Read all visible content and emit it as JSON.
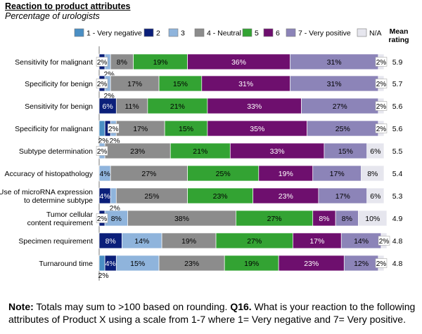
{
  "chart_data": {
    "type": "bar",
    "stacked": true,
    "orientation": "horizontal",
    "title": "Reaction to product attributes",
    "subtitle": "Percentage of urologists",
    "mean_header": "Mean\nrating",
    "legend_placement": "top",
    "xlim": [
      0,
      100
    ],
    "series": [
      {
        "name": "1 - Very negative",
        "color": "#4a8fc4"
      },
      {
        "name": "2",
        "color": "#0b1f7a"
      },
      {
        "name": "3",
        "color": "#8fb4dc"
      },
      {
        "name": "4 - Neutral",
        "color": "#8c8c8c"
      },
      {
        "name": "5",
        "color": "#33a333"
      },
      {
        "name": "6",
        "color": "#6e0f6e"
      },
      {
        "name": "7 - Very positive",
        "color": "#8c84b8"
      },
      {
        "name": "N/A",
        "color": "#e6e6ee"
      }
    ],
    "categories": [
      {
        "label": "Sensitivity for malignant",
        "values": [
          0,
          2,
          2,
          8,
          19,
          36,
          31,
          2
        ],
        "mean": "5.9"
      },
      {
        "label": "Specificity for benign",
        "values": [
          0,
          2,
          2,
          17,
          15,
          31,
          31,
          2
        ],
        "mean": "5.7"
      },
      {
        "label": "Sensitivity for benign",
        "values": [
          0,
          6,
          0,
          11,
          21,
          33,
          27,
          2
        ],
        "mean": "5.6"
      },
      {
        "label": "Specificity for malignant",
        "values": [
          2,
          2,
          2,
          17,
          15,
          35,
          25,
          2
        ],
        "mean": "5.6"
      },
      {
        "label": "Subtype determination",
        "values": [
          0,
          0,
          2,
          23,
          21,
          33,
          15,
          6
        ],
        "mean": "5.5"
      },
      {
        "label": "Accuracy of histopathology",
        "values": [
          0,
          0,
          4,
          27,
          25,
          19,
          17,
          8
        ],
        "mean": "5.4"
      },
      {
        "label": "Use of microRNA expression\nto determine subtype",
        "values": [
          0,
          4,
          2,
          25,
          23,
          23,
          17,
          6
        ],
        "mean": "5.3"
      },
      {
        "label": "Tumor cellular\ncontent requirement",
        "values": [
          0,
          2,
          8,
          38,
          27,
          8,
          8,
          10
        ],
        "mean": "4.9"
      },
      {
        "label": "Specimen requirement",
        "values": [
          0,
          8,
          14,
          19,
          27,
          17,
          14,
          2
        ],
        "mean": "4.8"
      },
      {
        "label": "Turnaround time",
        "values": [
          2,
          4,
          15,
          23,
          19,
          23,
          12,
          2
        ],
        "mean": "4.8"
      }
    ],
    "data_labels": [
      [
        [
          "2%",
          1,
          "in"
        ],
        [
          "2%",
          2,
          "below"
        ],
        [
          "8%",
          3,
          "in"
        ],
        [
          "19%",
          4,
          "in"
        ],
        [
          "36%",
          5,
          "in"
        ],
        [
          "31%",
          6,
          "in"
        ],
        [
          "2%",
          7,
          "in"
        ]
      ],
      [
        [
          "2%",
          1,
          "in"
        ],
        [
          "2%",
          2,
          "below"
        ],
        [
          "17%",
          3,
          "in"
        ],
        [
          "15%",
          4,
          "in"
        ],
        [
          "31%",
          5,
          "in"
        ],
        [
          "31%",
          6,
          "in"
        ],
        [
          "2%",
          7,
          "in"
        ]
      ],
      [
        [
          "6%",
          1,
          "in"
        ],
        [
          "11%",
          3,
          "in"
        ],
        [
          "21%",
          4,
          "in"
        ],
        [
          "33%",
          5,
          "in"
        ],
        [
          "27%",
          6,
          "in"
        ],
        [
          "2%",
          7,
          "in"
        ]
      ],
      [
        [
          "2%",
          0,
          "below"
        ],
        [
          "2%",
          1,
          "below"
        ],
        [
          "2%",
          2,
          "in"
        ],
        [
          "17%",
          3,
          "in"
        ],
        [
          "15%",
          4,
          "in"
        ],
        [
          "35%",
          5,
          "in"
        ],
        [
          "25%",
          6,
          "in"
        ],
        [
          "2%",
          7,
          "in"
        ]
      ],
      [
        [
          "2%",
          2,
          "in"
        ],
        [
          "23%",
          3,
          "in"
        ],
        [
          "21%",
          4,
          "in"
        ],
        [
          "33%",
          5,
          "in"
        ],
        [
          "15%",
          6,
          "in"
        ],
        [
          "6%",
          7,
          "in"
        ]
      ],
      [
        [
          "4%",
          2,
          "in"
        ],
        [
          "27%",
          3,
          "in"
        ],
        [
          "25%",
          4,
          "in"
        ],
        [
          "19%",
          5,
          "in"
        ],
        [
          "17%",
          6,
          "in"
        ],
        [
          "8%",
          7,
          "in"
        ]
      ],
      [
        [
          "4%",
          1,
          "in"
        ],
        [
          "2%",
          2,
          "below"
        ],
        [
          "25%",
          3,
          "in"
        ],
        [
          "23%",
          4,
          "in"
        ],
        [
          "23%",
          5,
          "in"
        ],
        [
          "17%",
          6,
          "in"
        ],
        [
          "6%",
          7,
          "in"
        ]
      ],
      [
        [
          "2%",
          1,
          "in"
        ],
        [
          "8%",
          2,
          "in"
        ],
        [
          "38%",
          3,
          "in"
        ],
        [
          "27%",
          4,
          "in"
        ],
        [
          "8%",
          5,
          "in"
        ],
        [
          "8%",
          6,
          "in"
        ],
        [
          "10%",
          7,
          "in"
        ]
      ],
      [
        [
          "8%",
          1,
          "in"
        ],
        [
          "14%",
          2,
          "in"
        ],
        [
          "19%",
          3,
          "in"
        ],
        [
          "27%",
          4,
          "in"
        ],
        [
          "17%",
          5,
          "in"
        ],
        [
          "14%",
          6,
          "in"
        ],
        [
          "2%",
          7,
          "in"
        ]
      ],
      [
        [
          "2%",
          0,
          "below"
        ],
        [
          "4%",
          1,
          "in"
        ],
        [
          "15%",
          2,
          "in"
        ],
        [
          "23%",
          3,
          "in"
        ],
        [
          "19%",
          4,
          "in"
        ],
        [
          "23%",
          5,
          "in"
        ],
        [
          "12%",
          6,
          "in"
        ],
        [
          "2%",
          7,
          "in"
        ]
      ]
    ]
  },
  "note": {
    "label": "Note:",
    "text1": " Totals may sum to >100 based on rounding. ",
    "question_label": "Q16.",
    "text2": " What is your reaction to the following attributes of Product X using a scale from 1-7 where 1= Very negative and 7= Very positive."
  }
}
